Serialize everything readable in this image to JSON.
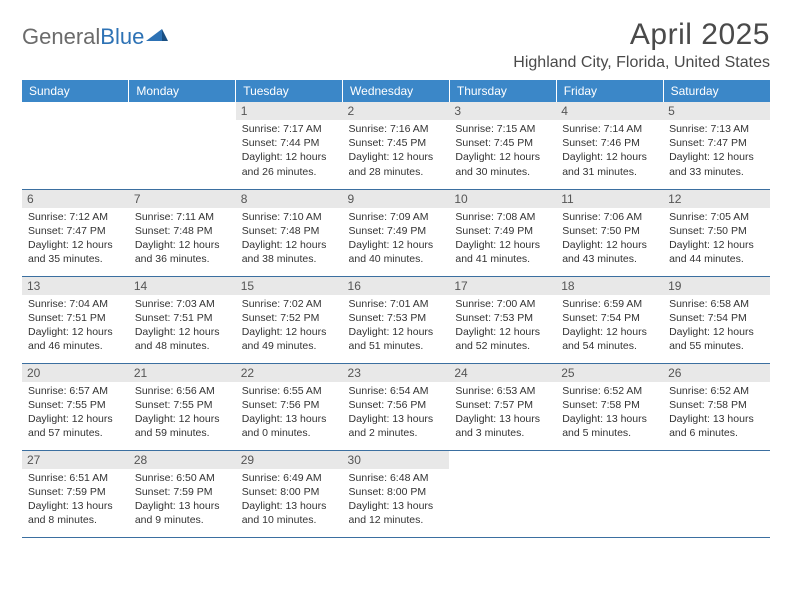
{
  "logo": {
    "part1": "General",
    "part2": "Blue"
  },
  "title": "April 2025",
  "location": "Highland City, Florida, United States",
  "header_bg": "#3b87c8",
  "weekdays": [
    "Sunday",
    "Monday",
    "Tuesday",
    "Wednesday",
    "Thursday",
    "Friday",
    "Saturday"
  ],
  "weeks": [
    [
      null,
      null,
      {
        "n": "1",
        "sr": "Sunrise: 7:17 AM",
        "ss": "Sunset: 7:44 PM",
        "d1": "Daylight: 12 hours",
        "d2": "and 26 minutes."
      },
      {
        "n": "2",
        "sr": "Sunrise: 7:16 AM",
        "ss": "Sunset: 7:45 PM",
        "d1": "Daylight: 12 hours",
        "d2": "and 28 minutes."
      },
      {
        "n": "3",
        "sr": "Sunrise: 7:15 AM",
        "ss": "Sunset: 7:45 PM",
        "d1": "Daylight: 12 hours",
        "d2": "and 30 minutes."
      },
      {
        "n": "4",
        "sr": "Sunrise: 7:14 AM",
        "ss": "Sunset: 7:46 PM",
        "d1": "Daylight: 12 hours",
        "d2": "and 31 minutes."
      },
      {
        "n": "5",
        "sr": "Sunrise: 7:13 AM",
        "ss": "Sunset: 7:47 PM",
        "d1": "Daylight: 12 hours",
        "d2": "and 33 minutes."
      }
    ],
    [
      {
        "n": "6",
        "sr": "Sunrise: 7:12 AM",
        "ss": "Sunset: 7:47 PM",
        "d1": "Daylight: 12 hours",
        "d2": "and 35 minutes."
      },
      {
        "n": "7",
        "sr": "Sunrise: 7:11 AM",
        "ss": "Sunset: 7:48 PM",
        "d1": "Daylight: 12 hours",
        "d2": "and 36 minutes."
      },
      {
        "n": "8",
        "sr": "Sunrise: 7:10 AM",
        "ss": "Sunset: 7:48 PM",
        "d1": "Daylight: 12 hours",
        "d2": "and 38 minutes."
      },
      {
        "n": "9",
        "sr": "Sunrise: 7:09 AM",
        "ss": "Sunset: 7:49 PM",
        "d1": "Daylight: 12 hours",
        "d2": "and 40 minutes."
      },
      {
        "n": "10",
        "sr": "Sunrise: 7:08 AM",
        "ss": "Sunset: 7:49 PM",
        "d1": "Daylight: 12 hours",
        "d2": "and 41 minutes."
      },
      {
        "n": "11",
        "sr": "Sunrise: 7:06 AM",
        "ss": "Sunset: 7:50 PM",
        "d1": "Daylight: 12 hours",
        "d2": "and 43 minutes."
      },
      {
        "n": "12",
        "sr": "Sunrise: 7:05 AM",
        "ss": "Sunset: 7:50 PM",
        "d1": "Daylight: 12 hours",
        "d2": "and 44 minutes."
      }
    ],
    [
      {
        "n": "13",
        "sr": "Sunrise: 7:04 AM",
        "ss": "Sunset: 7:51 PM",
        "d1": "Daylight: 12 hours",
        "d2": "and 46 minutes."
      },
      {
        "n": "14",
        "sr": "Sunrise: 7:03 AM",
        "ss": "Sunset: 7:51 PM",
        "d1": "Daylight: 12 hours",
        "d2": "and 48 minutes."
      },
      {
        "n": "15",
        "sr": "Sunrise: 7:02 AM",
        "ss": "Sunset: 7:52 PM",
        "d1": "Daylight: 12 hours",
        "d2": "and 49 minutes."
      },
      {
        "n": "16",
        "sr": "Sunrise: 7:01 AM",
        "ss": "Sunset: 7:53 PM",
        "d1": "Daylight: 12 hours",
        "d2": "and 51 minutes."
      },
      {
        "n": "17",
        "sr": "Sunrise: 7:00 AM",
        "ss": "Sunset: 7:53 PM",
        "d1": "Daylight: 12 hours",
        "d2": "and 52 minutes."
      },
      {
        "n": "18",
        "sr": "Sunrise: 6:59 AM",
        "ss": "Sunset: 7:54 PM",
        "d1": "Daylight: 12 hours",
        "d2": "and 54 minutes."
      },
      {
        "n": "19",
        "sr": "Sunrise: 6:58 AM",
        "ss": "Sunset: 7:54 PM",
        "d1": "Daylight: 12 hours",
        "d2": "and 55 minutes."
      }
    ],
    [
      {
        "n": "20",
        "sr": "Sunrise: 6:57 AM",
        "ss": "Sunset: 7:55 PM",
        "d1": "Daylight: 12 hours",
        "d2": "and 57 minutes."
      },
      {
        "n": "21",
        "sr": "Sunrise: 6:56 AM",
        "ss": "Sunset: 7:55 PM",
        "d1": "Daylight: 12 hours",
        "d2": "and 59 minutes."
      },
      {
        "n": "22",
        "sr": "Sunrise: 6:55 AM",
        "ss": "Sunset: 7:56 PM",
        "d1": "Daylight: 13 hours",
        "d2": "and 0 minutes."
      },
      {
        "n": "23",
        "sr": "Sunrise: 6:54 AM",
        "ss": "Sunset: 7:56 PM",
        "d1": "Daylight: 13 hours",
        "d2": "and 2 minutes."
      },
      {
        "n": "24",
        "sr": "Sunrise: 6:53 AM",
        "ss": "Sunset: 7:57 PM",
        "d1": "Daylight: 13 hours",
        "d2": "and 3 minutes."
      },
      {
        "n": "25",
        "sr": "Sunrise: 6:52 AM",
        "ss": "Sunset: 7:58 PM",
        "d1": "Daylight: 13 hours",
        "d2": "and 5 minutes."
      },
      {
        "n": "26",
        "sr": "Sunrise: 6:52 AM",
        "ss": "Sunset: 7:58 PM",
        "d1": "Daylight: 13 hours",
        "d2": "and 6 minutes."
      }
    ],
    [
      {
        "n": "27",
        "sr": "Sunrise: 6:51 AM",
        "ss": "Sunset: 7:59 PM",
        "d1": "Daylight: 13 hours",
        "d2": "and 8 minutes."
      },
      {
        "n": "28",
        "sr": "Sunrise: 6:50 AM",
        "ss": "Sunset: 7:59 PM",
        "d1": "Daylight: 13 hours",
        "d2": "and 9 minutes."
      },
      {
        "n": "29",
        "sr": "Sunrise: 6:49 AM",
        "ss": "Sunset: 8:00 PM",
        "d1": "Daylight: 13 hours",
        "d2": "and 10 minutes."
      },
      {
        "n": "30",
        "sr": "Sunrise: 6:48 AM",
        "ss": "Sunset: 8:00 PM",
        "d1": "Daylight: 13 hours",
        "d2": "and 12 minutes."
      },
      null,
      null,
      null
    ]
  ]
}
